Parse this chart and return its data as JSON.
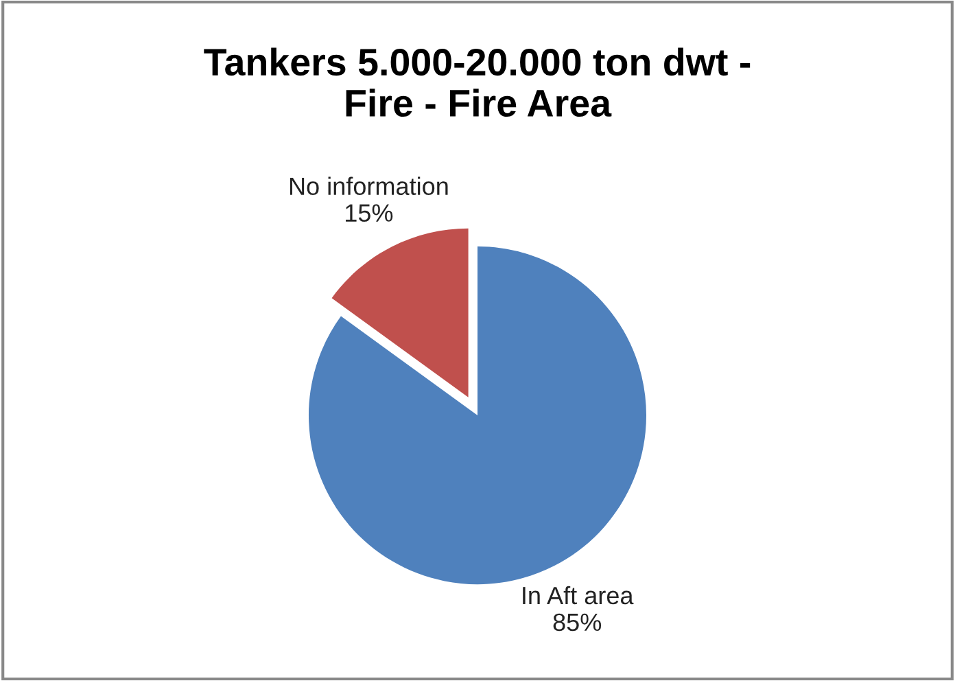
{
  "chart_data": {
    "type": "pie",
    "title": "Tankers 5.000-20.000 ton dwt -\nFire - Fire Area",
    "categories": [
      "No information",
      "In Aft area"
    ],
    "values": [
      15,
      85
    ],
    "value_labels": [
      "15%",
      "85%"
    ],
    "colors": [
      "#c0504d",
      "#4f81bd"
    ],
    "legend": false
  }
}
